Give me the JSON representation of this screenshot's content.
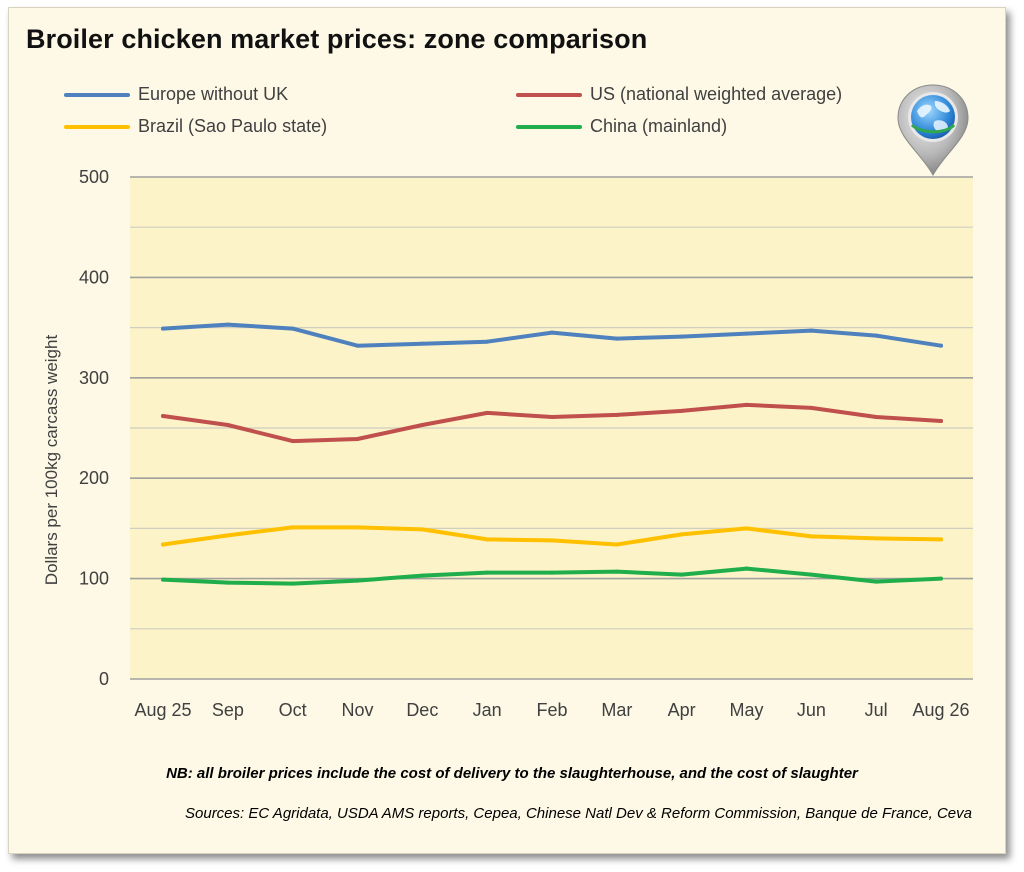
{
  "chart_data": {
    "type": "line",
    "title": "Broiler chicken market prices: zone comparison",
    "ylabel": "Dollars per 100kg carcass weight",
    "xlabel": "",
    "ylim": [
      0,
      500
    ],
    "yticks": [
      0,
      100,
      200,
      300,
      400,
      500
    ],
    "grid": true,
    "legend_position": "top",
    "categories": [
      "Aug 25",
      "Sep",
      "Oct",
      "Nov",
      "Dec",
      "Jan",
      "Feb",
      "Mar",
      "Apr",
      "May",
      "Jun",
      "Jul",
      "Aug 26"
    ],
    "series": [
      {
        "name": "Europe without UK",
        "color": "#4e81bd",
        "values": [
          349,
          353,
          349,
          332,
          334,
          336,
          345,
          339,
          341,
          344,
          347,
          342,
          332
        ]
      },
      {
        "name": "US (national weighted average)",
        "color": "#c0504d",
        "values": [
          262,
          253,
          237,
          239,
          253,
          265,
          261,
          263,
          267,
          273,
          270,
          261,
          257
        ]
      },
      {
        "name": "Brazil (Sao Paulo state)",
        "color": "#ffc000",
        "values": [
          134,
          143,
          151,
          151,
          149,
          139,
          138,
          134,
          144,
          150,
          142,
          140,
          139
        ]
      },
      {
        "name": "China (mainland)",
        "color": "#1fae4b",
        "values": [
          99,
          96,
          95,
          98,
          103,
          106,
          106,
          107,
          104,
          110,
          104,
          97,
          100
        ]
      }
    ]
  },
  "note": "NB: all broiler prices include the cost of delivery to the slaughterhouse, and the cost of slaughter",
  "sources": "Sources: EC Agridata, USDA AMS reports, Cepea, Chinese Natl Dev & Reform Commission, Banque de France, Ceva",
  "icons": {
    "logo": "globe-pin-icon"
  },
  "colors": {
    "plot_background": "#fdf3c8",
    "card_background": "#fdf9e6",
    "gridline": "#a6a6a6"
  }
}
